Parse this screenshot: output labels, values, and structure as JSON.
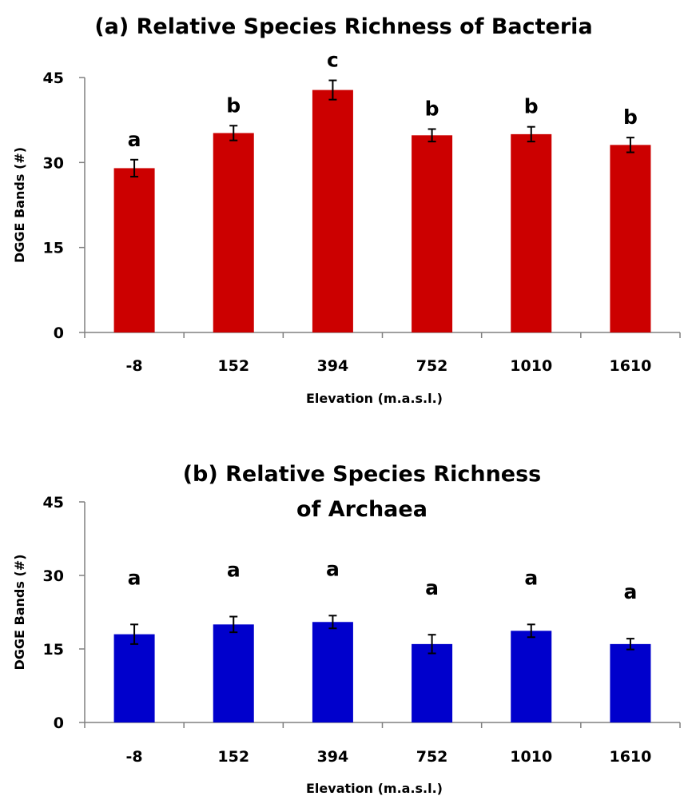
{
  "chart_data": [
    {
      "type": "bar",
      "title": "(a) Relative Species Richness of Bacteria",
      "xlabel": "Elevation (m.a.s.l.)",
      "ylabel": "DGGE Bands (#)",
      "categories": [
        "-8",
        "152",
        "394",
        "752",
        "1010",
        "1610"
      ],
      "values": [
        29.0,
        35.2,
        42.8,
        34.8,
        35.0,
        33.1
      ],
      "errors": [
        1.5,
        1.3,
        1.7,
        1.1,
        1.3,
        1.3
      ],
      "significance": [
        "a",
        "b",
        "c",
        "b",
        "b",
        "b"
      ],
      "ylim": [
        0,
        45
      ],
      "yticks": [
        "0",
        "15",
        "30",
        "45"
      ],
      "bar_color": "#cc0000",
      "grid": false,
      "legend": "none"
    },
    {
      "type": "bar",
      "title": "(b) Relative Species Richness of Archaea",
      "title_lines": [
        "(b) Relative Species Richness",
        "of Archaea"
      ],
      "xlabel": "Elevation (m.a.s.l.)",
      "ylabel": "DGGE Bands (#)",
      "categories": [
        "-8",
        "152",
        "394",
        "752",
        "1010",
        "1610"
      ],
      "values": [
        18.0,
        20.0,
        20.5,
        16.0,
        18.7,
        16.0
      ],
      "errors": [
        2.0,
        1.6,
        1.3,
        1.9,
        1.3,
        1.1
      ],
      "significance": [
        "a",
        "a",
        "a",
        "a",
        "a",
        "a"
      ],
      "ylim": [
        0,
        45
      ],
      "yticks": [
        "0",
        "15",
        "30",
        "45"
      ],
      "bar_color": "#0000cc",
      "grid": false,
      "legend": "none"
    }
  ]
}
